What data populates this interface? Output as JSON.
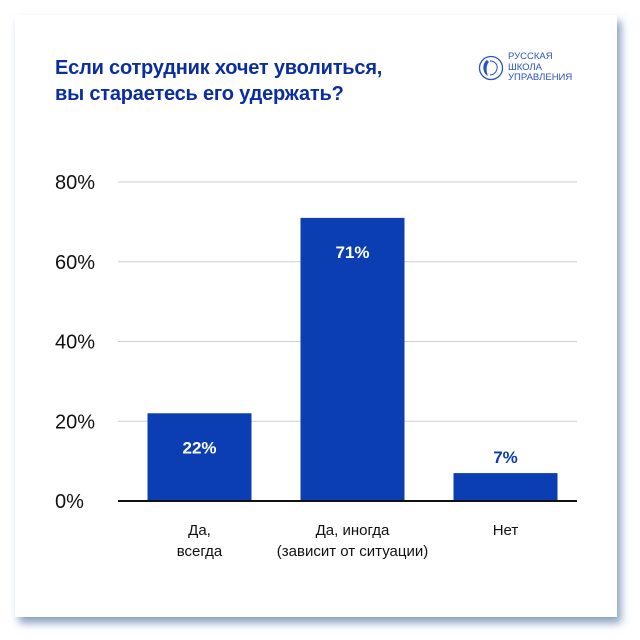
{
  "header": {
    "title_line1": "Если сотрудник хочет уволиться,",
    "title_line2": "вы стараетесь его удержать?",
    "logo": {
      "line1": "РУССКАЯ",
      "line2": "ШКОЛА",
      "line3": "УПРАВЛЕНИЯ",
      "icon": "globe-head-icon"
    }
  },
  "chart_data": {
    "type": "bar",
    "categories": [
      [
        "Да,",
        "всегда"
      ],
      [
        "Да, иногда",
        "(зависит от ситуации)"
      ],
      [
        "Нет",
        ""
      ]
    ],
    "values": [
      22,
      71,
      7
    ],
    "data_labels": [
      "22%",
      "71%",
      "7%"
    ],
    "yticks": [
      "0%",
      "20%",
      "40%",
      "60%",
      "80%"
    ],
    "ylim": [
      0,
      80
    ],
    "grid": true,
    "colors": {
      "bar": "#0b3db3",
      "label_inside": "#ffffff",
      "label_outside": "#0b3db3",
      "grid": "#cfcfcf",
      "axis": "#111111"
    }
  }
}
